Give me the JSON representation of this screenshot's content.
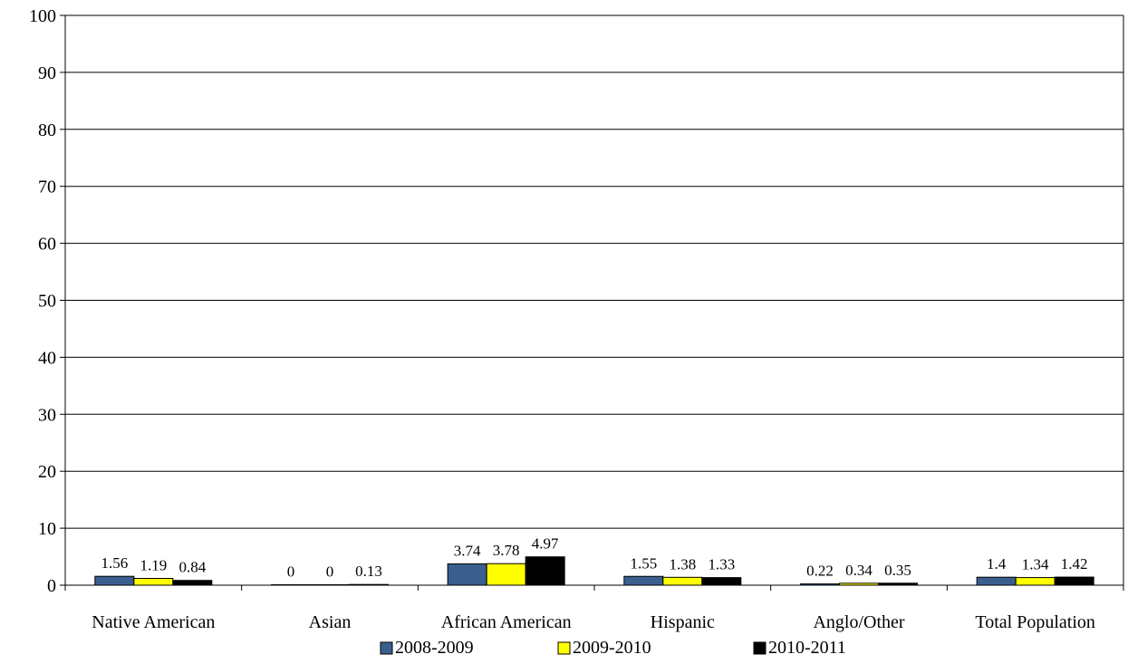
{
  "chart_data": {
    "type": "bar",
    "title": "",
    "xlabel": "",
    "ylabel": "",
    "ylim": [
      0,
      100
    ],
    "yticks": [
      0,
      10,
      20,
      30,
      40,
      50,
      60,
      70,
      80,
      90,
      100
    ],
    "grid": true,
    "legend_position": "bottom",
    "categories": [
      "Native American",
      "Asian",
      "African American",
      "Hispanic",
      "Anglo/Other",
      "Total Population"
    ],
    "series": [
      {
        "name": "2008-2009",
        "color": "#3A5F8F",
        "values": [
          1.56,
          0,
          3.74,
          1.55,
          0.22,
          1.4
        ]
      },
      {
        "name": "2009-2010",
        "color": "#FFFF00",
        "values": [
          1.19,
          0,
          3.78,
          1.38,
          0.34,
          1.34
        ]
      },
      {
        "name": "2010-2011",
        "color": "#000000",
        "values": [
          0.84,
          0.13,
          4.97,
          1.33,
          0.35,
          1.42
        ]
      }
    ]
  }
}
